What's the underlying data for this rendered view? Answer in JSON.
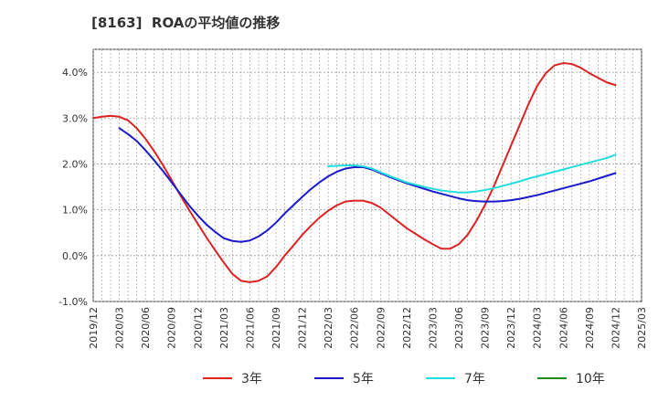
{
  "chart_data": {
    "type": "line",
    "title": "[8163]  ROAの平均値の推移",
    "xlabel": "",
    "ylabel": "",
    "x_ticks": [
      "2019/12",
      "2020/03",
      "2020/06",
      "2020/09",
      "2020/12",
      "2021/03",
      "2021/06",
      "2021/09",
      "2021/12",
      "2022/03",
      "2022/06",
      "2022/09",
      "2022/12",
      "2023/03",
      "2023/06",
      "2023/09",
      "2023/12",
      "2024/03",
      "2024/06",
      "2024/09",
      "2024/12",
      "2025/03"
    ],
    "y_ticks": [
      -1.0,
      0.0,
      1.0,
      2.0,
      3.0,
      4.0
    ],
    "y_tick_labels": [
      "-1.0%",
      "0.0%",
      "1.0%",
      "2.0%",
      "3.0%",
      "4.0%"
    ],
    "ylim": [
      -1.0,
      4.5
    ],
    "grid": true,
    "legend_position": "bottom",
    "series": [
      {
        "name": "3年",
        "color": "#dd2222",
        "points": [
          [
            "2019/12",
            3.0
          ],
          [
            "2020/01",
            3.03
          ],
          [
            "2020/02",
            3.05
          ],
          [
            "2020/03",
            3.03
          ],
          [
            "2020/04",
            2.95
          ],
          [
            "2020/05",
            2.78
          ],
          [
            "2020/06",
            2.55
          ],
          [
            "2020/07",
            2.28
          ],
          [
            "2020/08",
            1.98
          ],
          [
            "2020/09",
            1.65
          ],
          [
            "2020/10",
            1.32
          ],
          [
            "2020/11",
            1.0
          ],
          [
            "2020/12",
            0.7
          ],
          [
            "2021/01",
            0.4
          ],
          [
            "2021/02",
            0.12
          ],
          [
            "2021/03",
            -0.15
          ],
          [
            "2021/04",
            -0.4
          ],
          [
            "2021/05",
            -0.55
          ],
          [
            "2021/06",
            -0.58
          ],
          [
            "2021/07",
            -0.55
          ],
          [
            "2021/08",
            -0.45
          ],
          [
            "2021/09",
            -0.25
          ],
          [
            "2021/10",
            0.0
          ],
          [
            "2021/11",
            0.22
          ],
          [
            "2021/12",
            0.45
          ],
          [
            "2022/01",
            0.65
          ],
          [
            "2022/02",
            0.83
          ],
          [
            "2022/03",
            0.98
          ],
          [
            "2022/04",
            1.1
          ],
          [
            "2022/05",
            1.18
          ],
          [
            "2022/06",
            1.2
          ],
          [
            "2022/07",
            1.2
          ],
          [
            "2022/08",
            1.15
          ],
          [
            "2022/09",
            1.05
          ],
          [
            "2022/10",
            0.9
          ],
          [
            "2022/11",
            0.75
          ],
          [
            "2022/12",
            0.6
          ],
          [
            "2023/01",
            0.48
          ],
          [
            "2023/02",
            0.36
          ],
          [
            "2023/03",
            0.25
          ],
          [
            "2023/04",
            0.15
          ],
          [
            "2023/05",
            0.15
          ],
          [
            "2023/06",
            0.25
          ],
          [
            "2023/07",
            0.45
          ],
          [
            "2023/08",
            0.75
          ],
          [
            "2023/09",
            1.1
          ],
          [
            "2023/10",
            1.5
          ],
          [
            "2023/11",
            1.95
          ],
          [
            "2023/12",
            2.4
          ],
          [
            "2024/01",
            2.85
          ],
          [
            "2024/02",
            3.3
          ],
          [
            "2024/03",
            3.7
          ],
          [
            "2024/04",
            3.98
          ],
          [
            "2024/05",
            4.15
          ],
          [
            "2024/06",
            4.2
          ],
          [
            "2024/07",
            4.18
          ],
          [
            "2024/08",
            4.1
          ],
          [
            "2024/09",
            3.98
          ],
          [
            "2024/10",
            3.88
          ],
          [
            "2024/11",
            3.78
          ],
          [
            "2024/12",
            3.72
          ]
        ]
      },
      {
        "name": "5年",
        "color": "#1a1acc",
        "points": [
          [
            "2020/03",
            2.78
          ],
          [
            "2020/04",
            2.65
          ],
          [
            "2020/05",
            2.5
          ],
          [
            "2020/06",
            2.3
          ],
          [
            "2020/07",
            2.08
          ],
          [
            "2020/08",
            1.85
          ],
          [
            "2020/09",
            1.6
          ],
          [
            "2020/10",
            1.35
          ],
          [
            "2020/11",
            1.1
          ],
          [
            "2020/12",
            0.88
          ],
          [
            "2021/01",
            0.68
          ],
          [
            "2021/02",
            0.52
          ],
          [
            "2021/03",
            0.38
          ],
          [
            "2021/04",
            0.32
          ],
          [
            "2021/05",
            0.3
          ],
          [
            "2021/06",
            0.33
          ],
          [
            "2021/07",
            0.42
          ],
          [
            "2021/08",
            0.55
          ],
          [
            "2021/09",
            0.72
          ],
          [
            "2021/10",
            0.92
          ],
          [
            "2021/11",
            1.1
          ],
          [
            "2021/12",
            1.28
          ],
          [
            "2022/01",
            1.45
          ],
          [
            "2022/02",
            1.6
          ],
          [
            "2022/03",
            1.73
          ],
          [
            "2022/04",
            1.83
          ],
          [
            "2022/05",
            1.9
          ],
          [
            "2022/06",
            1.93
          ],
          [
            "2022/07",
            1.93
          ],
          [
            "2022/08",
            1.88
          ],
          [
            "2022/09",
            1.8
          ],
          [
            "2022/10",
            1.72
          ],
          [
            "2022/11",
            1.65
          ],
          [
            "2022/12",
            1.58
          ],
          [
            "2023/01",
            1.52
          ],
          [
            "2023/02",
            1.46
          ],
          [
            "2023/03",
            1.4
          ],
          [
            "2023/04",
            1.35
          ],
          [
            "2023/05",
            1.3
          ],
          [
            "2023/06",
            1.25
          ],
          [
            "2023/07",
            1.21
          ],
          [
            "2023/08",
            1.19
          ],
          [
            "2023/09",
            1.18
          ],
          [
            "2023/10",
            1.18
          ],
          [
            "2023/11",
            1.19
          ],
          [
            "2023/12",
            1.21
          ],
          [
            "2024/01",
            1.24
          ],
          [
            "2024/02",
            1.28
          ],
          [
            "2024/03",
            1.32
          ],
          [
            "2024/04",
            1.37
          ],
          [
            "2024/05",
            1.42
          ],
          [
            "2024/06",
            1.47
          ],
          [
            "2024/07",
            1.52
          ],
          [
            "2024/08",
            1.57
          ],
          [
            "2024/09",
            1.62
          ],
          [
            "2024/10",
            1.68
          ],
          [
            "2024/11",
            1.74
          ],
          [
            "2024/12",
            1.8
          ]
        ]
      },
      {
        "name": "7年",
        "color": "#22dddd",
        "points": [
          [
            "2022/03",
            1.95
          ],
          [
            "2022/04",
            1.96
          ],
          [
            "2022/05",
            1.97
          ],
          [
            "2022/06",
            1.97
          ],
          [
            "2022/07",
            1.95
          ],
          [
            "2022/08",
            1.9
          ],
          [
            "2022/09",
            1.82
          ],
          [
            "2022/10",
            1.74
          ],
          [
            "2022/11",
            1.67
          ],
          [
            "2022/12",
            1.6
          ],
          [
            "2023/01",
            1.55
          ],
          [
            "2023/02",
            1.5
          ],
          [
            "2023/03",
            1.46
          ],
          [
            "2023/04",
            1.42
          ],
          [
            "2023/05",
            1.4
          ],
          [
            "2023/06",
            1.38
          ],
          [
            "2023/07",
            1.38
          ],
          [
            "2023/08",
            1.4
          ],
          [
            "2023/09",
            1.43
          ],
          [
            "2023/10",
            1.47
          ],
          [
            "2023/11",
            1.52
          ],
          [
            "2023/12",
            1.57
          ],
          [
            "2024/01",
            1.62
          ],
          [
            "2024/02",
            1.68
          ],
          [
            "2024/03",
            1.73
          ],
          [
            "2024/04",
            1.78
          ],
          [
            "2024/05",
            1.83
          ],
          [
            "2024/06",
            1.88
          ],
          [
            "2024/07",
            1.93
          ],
          [
            "2024/08",
            1.98
          ],
          [
            "2024/09",
            2.03
          ],
          [
            "2024/10",
            2.08
          ],
          [
            "2024/11",
            2.13
          ],
          [
            "2024/12",
            2.2
          ]
        ]
      },
      {
        "name": "10年",
        "color": "#228822",
        "points": []
      }
    ]
  }
}
